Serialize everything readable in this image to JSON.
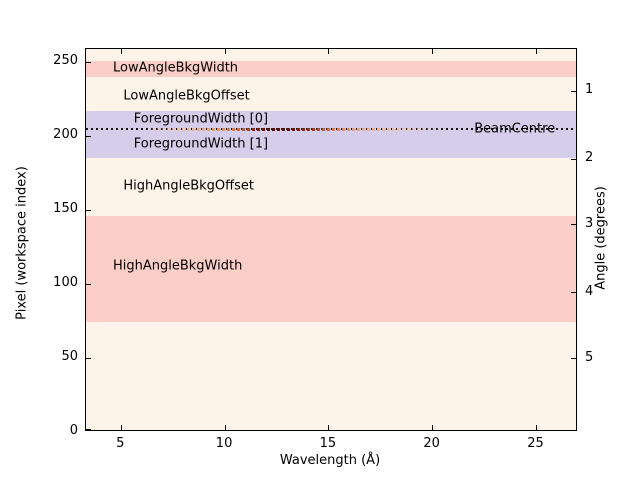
{
  "figure": {
    "background": "#ffffff",
    "plot_background": "#fdf3e8",
    "border_color": "#000000",
    "band_pink": "#fbcfc8",
    "band_lavender": "#d5cdea"
  },
  "chart_data": {
    "type": "area",
    "title": "",
    "xlabel": "Wavelength (Å)",
    "ylabel_left": "Pixel (workspace index)",
    "ylabel_right": "Angle (degrees)",
    "xlim": [
      3.3,
      27.0
    ],
    "ylim": [
      0,
      259
    ],
    "x_ticks": [
      5,
      10,
      15,
      20,
      25
    ],
    "y_ticks_left": [
      0,
      50,
      100,
      150,
      200,
      250
    ],
    "y_ticks_right": [
      {
        "label": "1",
        "y_left_equiv": 230.5
      },
      {
        "label": "2",
        "y_left_equiv": 184.5
      },
      {
        "label": "3",
        "y_left_equiv": 140.0
      },
      {
        "label": "4",
        "y_left_equiv": 94.0
      },
      {
        "label": "5",
        "y_left_equiv": 49.5
      }
    ],
    "grid": false,
    "bands": [
      {
        "name": "LowAngleBkgWidth",
        "y_from": 240.0,
        "y_to": 251.0,
        "color": "#fbcfc8"
      },
      {
        "name": "ForegroundWidth",
        "y_from": 185.0,
        "y_to": 217.0,
        "color": "#d5cdea"
      },
      {
        "name": "HighAngleBkgWidth",
        "y_from": 74.5,
        "y_to": 146.0,
        "color": "#fbcfc8"
      }
    ],
    "beam_centre": {
      "y": 204.7,
      "line_color": "#151515",
      "line_style": "dotted",
      "intensity_segment": {
        "x_from": 6.0,
        "x_to": 20.5,
        "stops": [
          {
            "x": 6.0,
            "color": "rgba(230,160,120,0)"
          },
          {
            "x": 8.0,
            "color": "#eec2ab"
          },
          {
            "x": 9.5,
            "color": "#e09d70"
          },
          {
            "x": 10.7,
            "color": "#cc6a3c"
          },
          {
            "x": 11.4,
            "color": "#8c2a12"
          },
          {
            "x": 12.1,
            "color": "#570e05"
          },
          {
            "x": 13.2,
            "color": "#611208"
          },
          {
            "x": 14.2,
            "color": "#a03418"
          },
          {
            "x": 15.2,
            "color": "#cf7a52"
          },
          {
            "x": 16.5,
            "color": "#e5ab8d"
          },
          {
            "x": 18.5,
            "color": "#edc6b4"
          },
          {
            "x": 20.5,
            "color": "rgba(237,198,180,0)"
          }
        ]
      }
    },
    "annotations": [
      {
        "text": "LowAngleBkgWidth",
        "x": 4.6,
        "y": 246.0
      },
      {
        "text": "LowAngleBkgOffset",
        "x": 5.1,
        "y": 227.5
      },
      {
        "text": "ForegroundWidth [0]",
        "x": 5.6,
        "y": 211.5
      },
      {
        "text": "ForegroundWidth [1]",
        "x": 5.6,
        "y": 194.5
      },
      {
        "text": "HighAngleBkgOffset",
        "x": 5.1,
        "y": 166.5
      },
      {
        "text": "HighAngleBkgWidth",
        "x": 4.6,
        "y": 112.5
      },
      {
        "text": "BeamCentre",
        "x": 22.0,
        "y": 204.7
      }
    ]
  }
}
